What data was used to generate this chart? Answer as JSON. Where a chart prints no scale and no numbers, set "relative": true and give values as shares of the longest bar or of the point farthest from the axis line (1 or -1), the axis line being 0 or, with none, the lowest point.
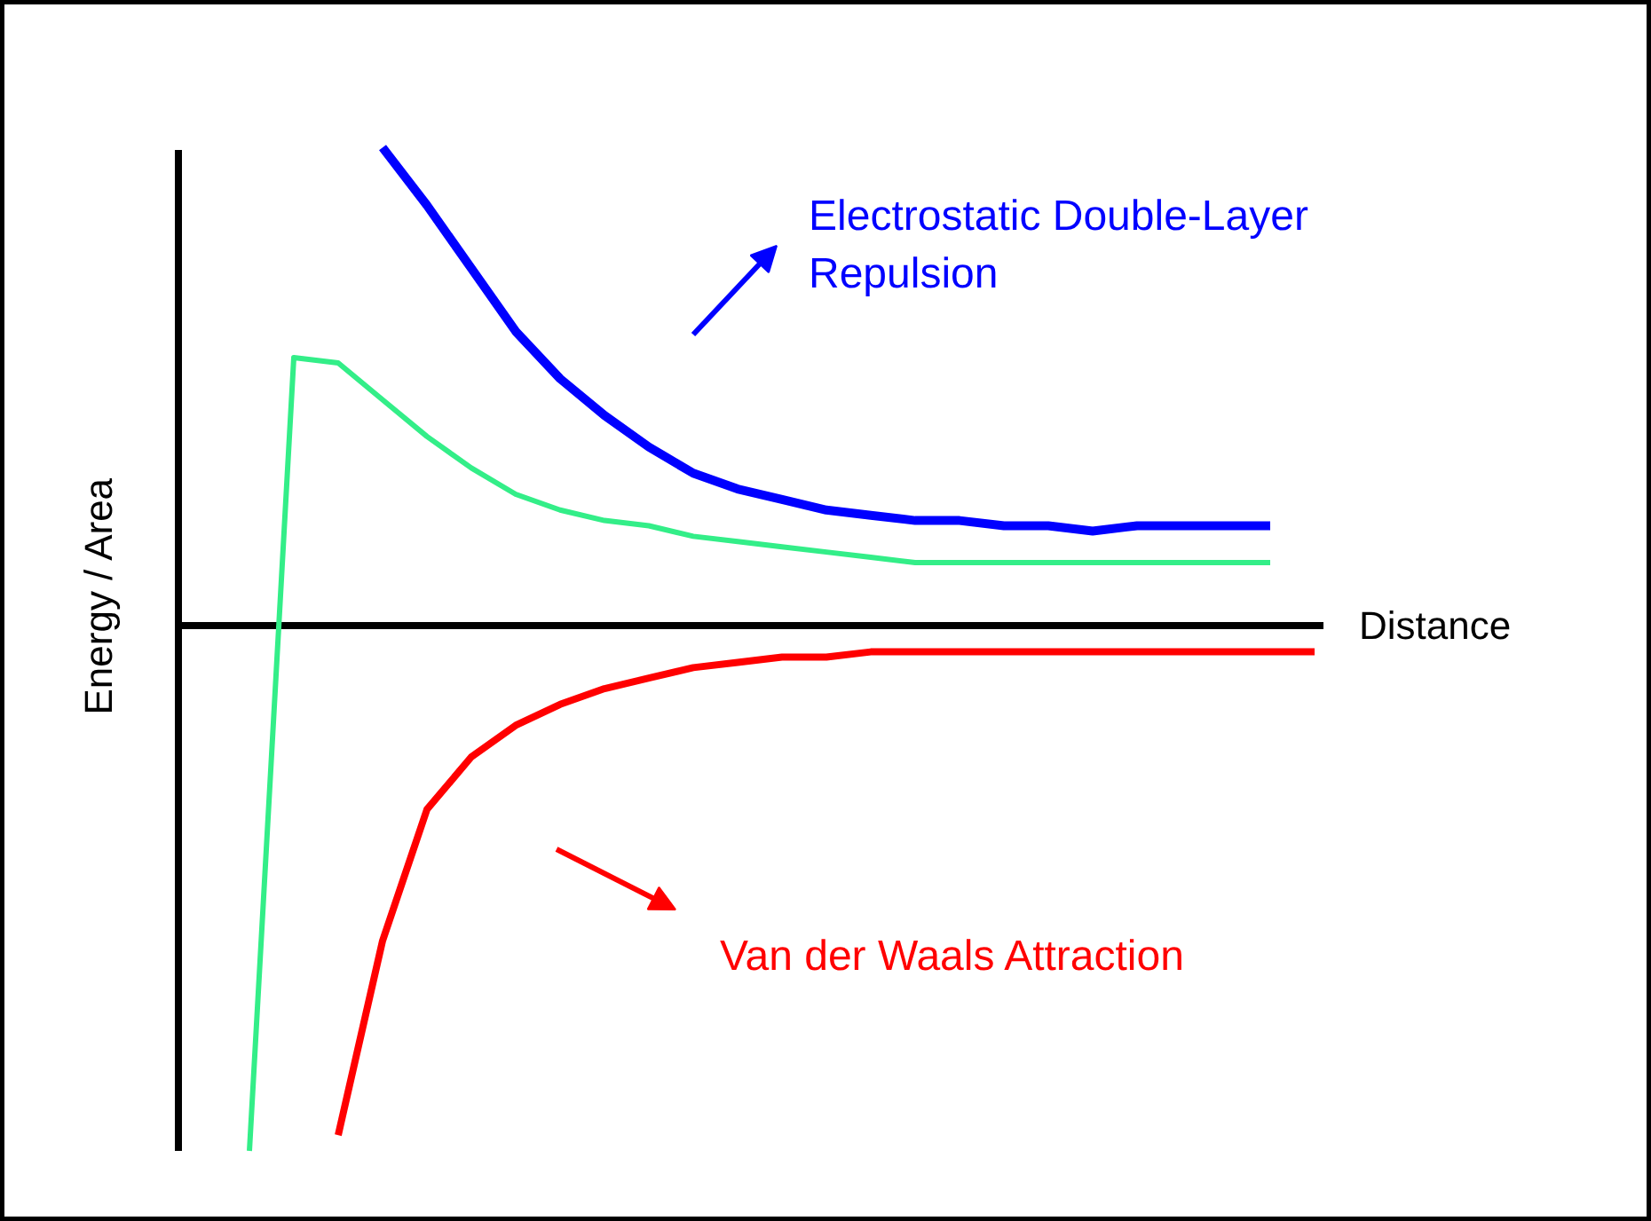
{
  "chart_data": {
    "type": "line",
    "relative": true,
    "xlabel": "Distance",
    "ylabel": "Energy / Area",
    "categories": [
      null,
      null,
      null,
      null,
      null,
      null,
      null,
      null,
      null,
      null,
      null,
      null,
      null,
      null,
      null,
      null,
      null,
      null,
      null,
      null,
      null,
      null,
      null,
      null,
      null
    ],
    "series": [
      {
        "name": "Electrostatic Double-Layer Repulsion",
        "color": "#0000ff",
        "values": [
          null,
          null,
          null,
          0.91,
          0.8,
          0.68,
          0.56,
          0.47,
          0.4,
          0.34,
          0.29,
          0.26,
          0.24,
          0.22,
          0.21,
          0.2,
          0.2,
          0.19,
          0.19,
          0.18,
          0.19,
          0.19,
          0.19,
          0.19,
          null
        ]
      },
      {
        "color": "#33ee88",
        "values": [
          -1.0,
          0.51,
          0.5,
          0.43,
          0.36,
          0.3,
          0.25,
          0.22,
          0.2,
          0.19,
          0.17,
          0.16,
          0.15,
          0.14,
          0.13,
          0.12,
          0.12,
          0.12,
          0.12,
          0.12,
          0.12,
          0.12,
          0.12,
          0.12,
          null
        ]
      },
      {
        "name": "Van der Waals Attraction",
        "color": "#ff0000",
        "values": [
          null,
          null,
          -0.97,
          -0.6,
          -0.35,
          -0.25,
          -0.19,
          -0.15,
          -0.12,
          -0.1,
          -0.08,
          -0.07,
          -0.06,
          -0.06,
          -0.05,
          -0.05,
          -0.05,
          -0.05,
          -0.05,
          -0.05,
          -0.05,
          -0.05,
          -0.05,
          -0.05,
          -0.05
        ]
      }
    ]
  }
}
